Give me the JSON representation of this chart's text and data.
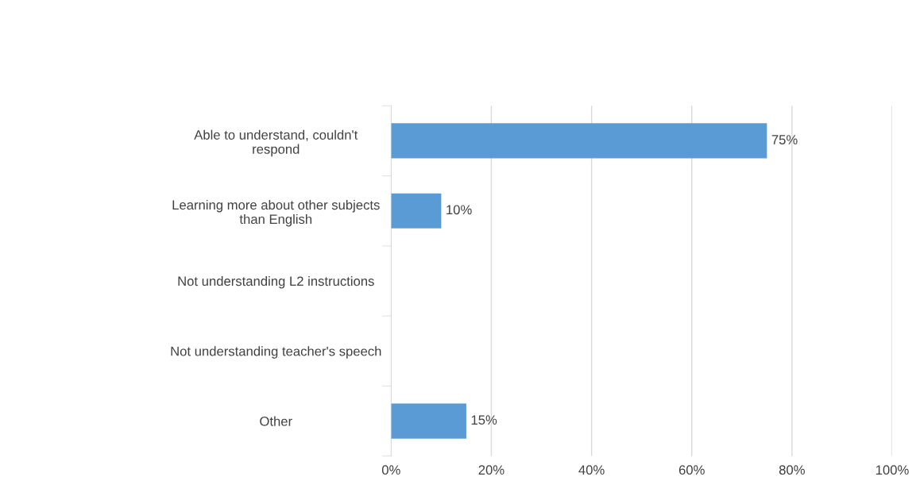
{
  "chart_data": {
    "type": "bar",
    "orientation": "horizontal",
    "categories": [
      "Able to understand, couldn't respond",
      "Learning more about other subjects than English",
      "Not understanding L2 instructions",
      "Not understanding teacher's speech",
      "Other"
    ],
    "values": [
      75,
      10,
      0,
      0,
      15
    ],
    "value_labels": [
      "75%",
      "10%",
      null,
      null,
      "15%"
    ],
    "color": "#5b9bd5",
    "xlim": [
      0,
      100
    ],
    "xticks": [
      {
        "value": 0,
        "label": "0%"
      },
      {
        "value": 20,
        "label": "20%"
      },
      {
        "value": 40,
        "label": "40%"
      },
      {
        "value": 60,
        "label": "60%"
      },
      {
        "value": 80,
        "label": "80%"
      },
      {
        "value": 100,
        "label": "100%"
      }
    ],
    "grid": "x"
  }
}
